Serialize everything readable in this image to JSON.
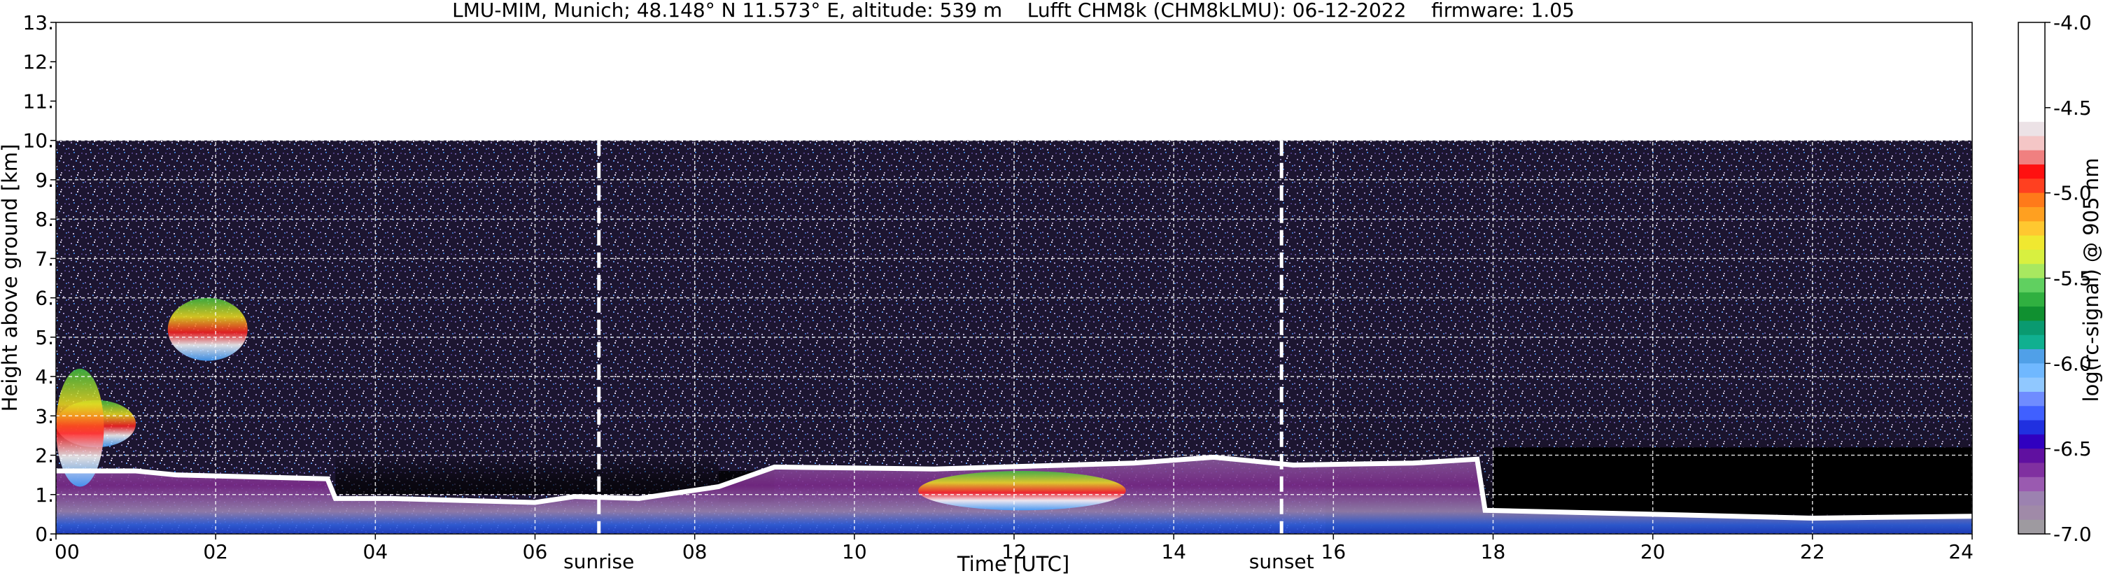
{
  "chart_data": {
    "type": "heatmap",
    "title": "LMU-MIM, Munich; 48.148° N 11.573° E, altitude: 539 m    Lufft CHM8k (CHM8kLMU): 06-12-2022    firmware: 1.05",
    "xlabel": "Time [UTC]",
    "ylabel": "Height above ground [km]",
    "xlim": [
      0,
      24
    ],
    "ylim": [
      0,
      13
    ],
    "x_ticks": [
      "00",
      "02",
      "04",
      "06",
      "08",
      "10",
      "12",
      "14",
      "16",
      "18",
      "20",
      "22",
      "24"
    ],
    "y_ticks": [
      "0.",
      "1.",
      "2.",
      "3.",
      "4.",
      "5.",
      "6.",
      "7.",
      "8.",
      "9.",
      "10.",
      "11.",
      "12.",
      "13."
    ],
    "grid": true,
    "data_top_km": 10,
    "colorbar": {
      "label": "log(rc-signal) @ 905 nm",
      "range": [
        -7.0,
        -4.0
      ],
      "ticks": [
        "-4.0",
        "-4.5",
        "-5.0",
        "-5.5",
        "-6.0",
        "-6.5",
        "-7.0"
      ]
    },
    "events": [
      {
        "label": "sunrise",
        "time": 6.8
      },
      {
        "label": "sunset",
        "time": 15.35
      }
    ],
    "layers": {
      "boundary_layer_top_km": [
        {
          "t": 0.0,
          "h": 1.6
        },
        {
          "t": 1.0,
          "h": 1.6
        },
        {
          "t": 1.5,
          "h": 1.5
        },
        {
          "t": 3.4,
          "h": 1.4
        },
        {
          "t": 3.5,
          "h": 0.9
        },
        {
          "t": 4.2,
          "h": 0.9
        },
        {
          "t": 6.0,
          "h": 0.8
        },
        {
          "t": 6.5,
          "h": 0.95
        },
        {
          "t": 7.3,
          "h": 0.9
        },
        {
          "t": 8.3,
          "h": 1.2
        },
        {
          "t": 9.0,
          "h": 1.7
        },
        {
          "t": 11.0,
          "h": 1.65
        },
        {
          "t": 13.5,
          "h": 1.8
        },
        {
          "t": 14.5,
          "h": 1.95
        },
        {
          "t": 15.5,
          "h": 1.75
        },
        {
          "t": 17.0,
          "h": 1.8
        },
        {
          "t": 17.8,
          "h": 1.9
        },
        {
          "t": 17.9,
          "h": 0.6
        },
        {
          "t": 20.0,
          "h": 0.5
        },
        {
          "t": 22.0,
          "h": 0.4
        },
        {
          "t": 24.0,
          "h": 0.45
        }
      ],
      "cloud_patches": [
        {
          "t0": 0.0,
          "t1": 1.0,
          "h0": 2.2,
          "h1": 3.4,
          "level": -4.8
        },
        {
          "t0": 0.0,
          "t1": 0.6,
          "h0": 1.2,
          "h1": 4.2,
          "level": -5.6
        },
        {
          "t0": 1.4,
          "t1": 2.4,
          "h0": 4.4,
          "h1": 6.0,
          "level": -5.2
        },
        {
          "t0": 10.8,
          "t1": 13.4,
          "h0": 0.6,
          "h1": 1.6,
          "level": -5.6
        }
      ]
    }
  }
}
